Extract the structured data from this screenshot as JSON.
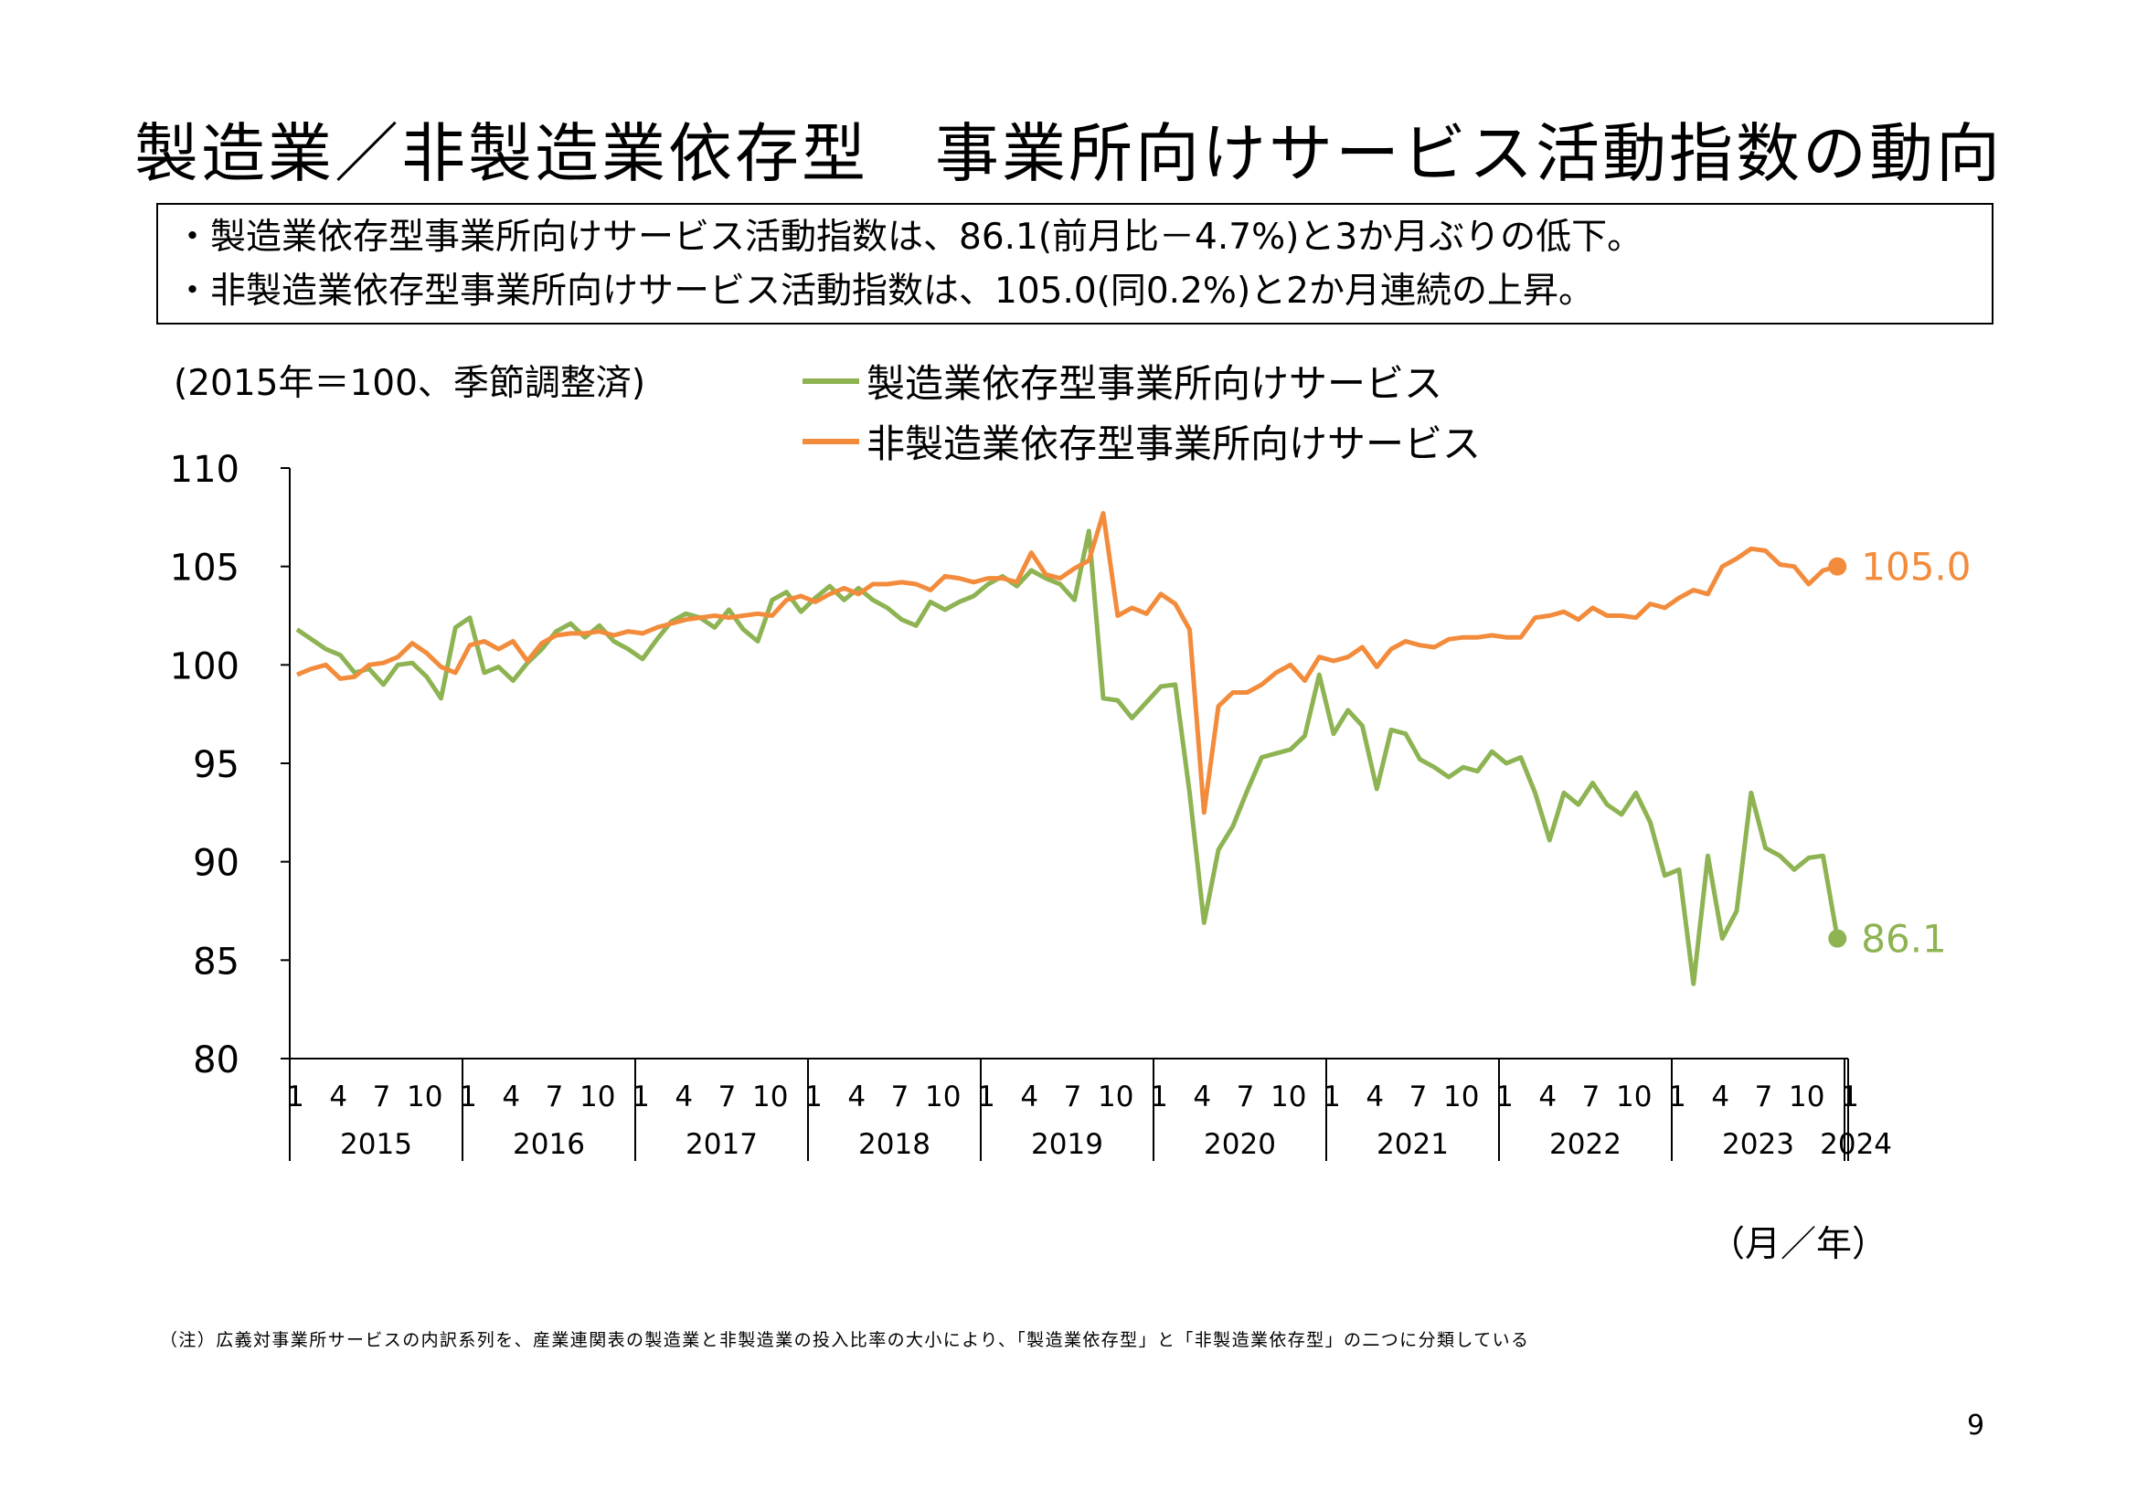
{
  "title": "製造業／非製造業依存型　事業所向けサービス活動指数の動向",
  "summary": [
    "・製造業依存型事業所向けサービス活動指数は、86.1(前月比－4.7%)と3か月ぶりの低下。",
    "・非製造業依存型事業所向けサービス活動指数は、105.0(同0.2%)と2か月連続の上昇。"
  ],
  "unit_note": "(2015年＝100、季節調整済)",
  "axis_unit": "（月／年）",
  "footnote": "（注）広義対事業所サービスの内訳系列を、産業連関表の製造業と非製造業の投入比率の大小により、「製造業依存型」と「非製造業依存型」の二つに分類している",
  "page_number": "9",
  "colors": {
    "manufacturing": "#8DB352",
    "non_manufacturing": "#F28C3C",
    "axis": "#000000"
  },
  "chart_data": {
    "type": "line",
    "ylim": [
      80,
      110
    ],
    "yticks": [
      "80",
      "85",
      "90",
      "95",
      "100",
      "105",
      "110"
    ],
    "month_ticks": [
      "1",
      "4",
      "7",
      "10"
    ],
    "years": [
      "2015",
      "2016",
      "2017",
      "2018",
      "2019",
      "2020",
      "2021",
      "2022",
      "2023",
      "2024"
    ],
    "x_start": "2015-01",
    "x_end": "2024-01",
    "series": [
      {
        "name": "製造業依存型事業所向けサービス",
        "end_label": "86.1",
        "values": [
          101.8,
          101.3,
          100.8,
          100.5,
          99.6,
          99.8,
          99.0,
          100.0,
          100.1,
          99.4,
          98.3,
          101.9,
          102.4,
          99.6,
          99.9,
          99.2,
          100.1,
          100.8,
          101.7,
          102.1,
          101.4,
          102.0,
          101.2,
          100.8,
          100.3,
          101.3,
          102.2,
          102.6,
          102.4,
          101.9,
          102.8,
          101.8,
          101.2,
          103.3,
          103.7,
          102.7,
          103.4,
          104.0,
          103.3,
          103.9,
          103.3,
          102.9,
          102.3,
          102.0,
          103.2,
          102.8,
          103.2,
          103.5,
          104.1,
          104.5,
          104.0,
          104.8,
          104.4,
          104.1,
          103.3,
          106.8,
          98.3,
          98.2,
          97.3,
          98.1,
          98.9,
          99.0,
          93.5,
          86.9,
          90.6,
          91.8,
          93.6,
          95.3,
          95.5,
          95.7,
          96.4,
          99.5,
          96.5,
          97.7,
          96.9,
          93.7,
          96.7,
          96.5,
          95.2,
          94.8,
          94.3,
          94.8,
          94.6,
          95.6,
          95.0,
          95.3,
          93.5,
          91.1,
          93.5,
          92.9,
          94.0,
          92.9,
          92.4,
          93.5,
          92.0,
          89.3,
          89.6,
          83.8,
          90.3,
          86.1,
          87.5,
          93.5,
          90.7,
          90.3,
          89.6,
          90.2,
          90.3,
          86.1
        ]
      },
      {
        "name": "非製造業依存型事業所向けサービス",
        "end_label": "105.0",
        "values": [
          99.5,
          99.8,
          100.0,
          99.3,
          99.4,
          100.0,
          100.1,
          100.4,
          101.1,
          100.6,
          99.9,
          99.6,
          101.0,
          101.2,
          100.8,
          101.2,
          100.2,
          101.1,
          101.5,
          101.6,
          101.6,
          101.7,
          101.5,
          101.7,
          101.6,
          101.9,
          102.1,
          102.3,
          102.4,
          102.5,
          102.4,
          102.5,
          102.6,
          102.5,
          103.3,
          103.5,
          103.2,
          103.6,
          103.9,
          103.6,
          104.1,
          104.1,
          104.2,
          104.1,
          103.8,
          104.5,
          104.4,
          104.2,
          104.4,
          104.4,
          104.2,
          105.7,
          104.6,
          104.4,
          104.9,
          105.3,
          107.7,
          102.5,
          102.9,
          102.6,
          103.6,
          103.1,
          101.8,
          92.5,
          97.9,
          98.6,
          98.6,
          99.0,
          99.6,
          100.0,
          99.2,
          100.4,
          100.2,
          100.4,
          100.9,
          99.9,
          100.8,
          101.2,
          101.0,
          100.9,
          101.3,
          101.4,
          101.4,
          101.5,
          101.4,
          101.4,
          102.4,
          102.5,
          102.7,
          102.3,
          102.9,
          102.5,
          102.5,
          102.4,
          103.1,
          102.9,
          103.4,
          103.8,
          103.6,
          105.0,
          105.4,
          105.9,
          105.8,
          105.1,
          105.0,
          104.1,
          104.8,
          105.0
        ]
      }
    ]
  }
}
